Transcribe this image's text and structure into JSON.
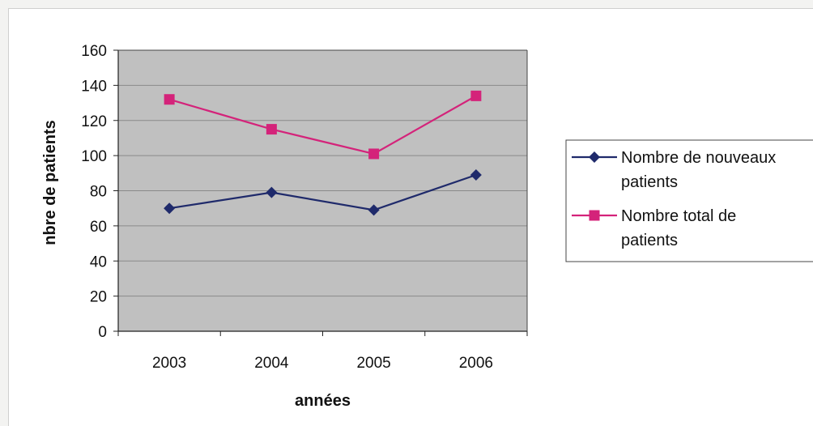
{
  "chart_data": {
    "type": "line",
    "title": "",
    "xlabel": "années",
    "ylabel": "nbre de patients",
    "categories": [
      "2003",
      "2004",
      "2005",
      "2006"
    ],
    "ylim": [
      0,
      160
    ],
    "yticks": [
      "0",
      "20",
      "40",
      "60",
      "80",
      "100",
      "120",
      "140",
      "160"
    ],
    "grid": true,
    "legend_position": "right",
    "series": [
      {
        "name_lines": [
          "Nombre de nouveaux",
          "patients"
        ],
        "values": [
          70,
          79,
          69,
          89
        ],
        "color": "#1f2a6b",
        "marker": "diamond"
      },
      {
        "name_lines": [
          "Nombre total de",
          "patients"
        ],
        "values": [
          132,
          115,
          101,
          134
        ],
        "color": "#d4237a",
        "marker": "square"
      }
    ],
    "plot_background": "#c0c0c0"
  }
}
